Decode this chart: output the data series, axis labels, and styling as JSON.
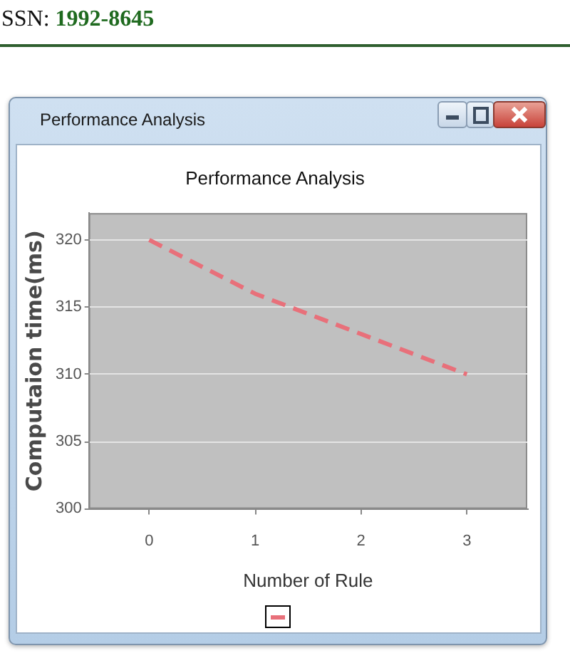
{
  "chart_data": {
    "type": "line",
    "title": "Performance Analysis",
    "xlabel": "Number of Rule",
    "ylabel": "Computaion time(ms)",
    "annotations": [
      "SSN: 1992-8645"
    ],
    "x": [
      0,
      1,
      2,
      3
    ],
    "values": [
      320,
      316,
      313,
      310
    ],
    "color": "#e8707a",
    "xlim": [
      -0.57,
      3.57
    ],
    "ylim": [
      300,
      322
    ],
    "xticks": [
      0,
      1,
      2,
      3
    ],
    "yticks": [
      300,
      305,
      310,
      315,
      320
    ],
    "grid": "y",
    "marker": "none",
    "line_style": "dashed"
  }
}
